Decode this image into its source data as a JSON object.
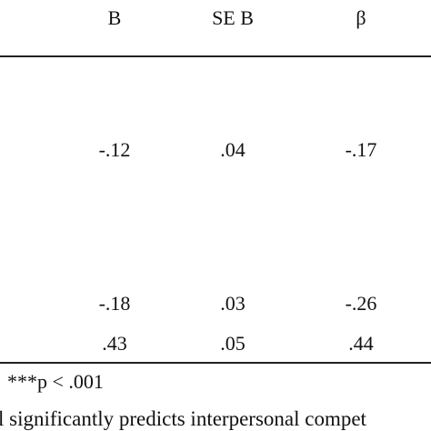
{
  "table": {
    "headers": [
      "B",
      "SE B",
      "β"
    ],
    "rows": [
      [
        "-.12",
        ".04",
        "-.17"
      ],
      [
        "-.18",
        ".03",
        "-.26"
      ],
      [
        ".43",
        ".05",
        ".44"
      ]
    ]
  },
  "notes": [
    "***p < .001",
    "l significantly predicts interpersonal compet"
  ]
}
